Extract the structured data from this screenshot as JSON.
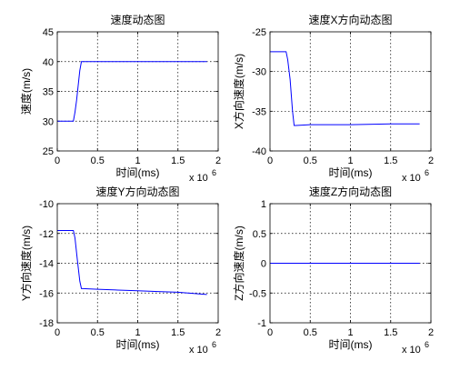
{
  "chart_data": [
    {
      "type": "line",
      "title": "速度动态图",
      "xlabel": "时间(ms)",
      "ylabel": "速度(m/s)",
      "x_multiplier": "x 10",
      "x_multiplier_exp": "6",
      "xlim": [
        0,
        2
      ],
      "ylim": [
        25,
        45
      ],
      "xticks": [
        0,
        0.5,
        1,
        1.5,
        2
      ],
      "yticks": [
        25,
        30,
        35,
        40,
        45
      ],
      "xtick_labels": [
        "0",
        "0.5",
        "1",
        "1.5",
        "2"
      ],
      "ytick_labels": [
        "25",
        "30",
        "35",
        "40",
        "45"
      ],
      "grid": true,
      "series": [
        {
          "color": "#0000ff",
          "x": [
            0.0,
            0.2,
            0.22,
            0.24,
            0.26,
            0.28,
            0.3,
            1.86
          ],
          "y": [
            30,
            30,
            31.5,
            33.5,
            36,
            38.5,
            40,
            40
          ]
        }
      ]
    },
    {
      "type": "line",
      "title": "速度X方向动态图",
      "xlabel": "时间(ms)",
      "ylabel": "X方向速度(m/s)",
      "x_multiplier": "x 10",
      "x_multiplier_exp": "6",
      "xlim": [
        0,
        2
      ],
      "ylim": [
        -40,
        -25
      ],
      "xticks": [
        0,
        0.5,
        1,
        1.5,
        2
      ],
      "yticks": [
        -40,
        -35,
        -30,
        -25
      ],
      "xtick_labels": [
        "0",
        "0.5",
        "1",
        "1.5",
        "2"
      ],
      "ytick_labels": [
        "-40",
        "-35",
        "-30",
        "-25"
      ],
      "grid": true,
      "series": [
        {
          "color": "#0000ff",
          "x": [
            0.0,
            0.2,
            0.22,
            0.25,
            0.28,
            0.3,
            0.32,
            0.5,
            1.0,
            1.5,
            1.86
          ],
          "y": [
            -27.5,
            -27.5,
            -28.5,
            -31,
            -35,
            -36.8,
            -36.8,
            -36.7,
            -36.7,
            -36.6,
            -36.6
          ]
        }
      ]
    },
    {
      "type": "line",
      "title": "速度Y方向动态图",
      "xlabel": "时间(ms)",
      "ylabel": "Y方向速度(m/s)",
      "x_multiplier": "x 10",
      "x_multiplier_exp": "6",
      "xlim": [
        0,
        2
      ],
      "ylim": [
        -18,
        -10
      ],
      "xticks": [
        0,
        0.5,
        1,
        1.5,
        2
      ],
      "yticks": [
        -18,
        -16,
        -14,
        -12,
        -10
      ],
      "xtick_labels": [
        "0",
        "0.5",
        "1",
        "1.5",
        "2"
      ],
      "ytick_labels": [
        "-18",
        "-16",
        "-14",
        "-12",
        "-10"
      ],
      "grid": true,
      "series": [
        {
          "color": "#0000ff",
          "x": [
            0.0,
            0.2,
            0.22,
            0.25,
            0.28,
            0.3,
            0.32,
            0.5,
            0.75,
            1.0,
            1.25,
            1.5,
            1.75,
            1.86
          ],
          "y": [
            -11.8,
            -11.8,
            -12.3,
            -13.8,
            -15.2,
            -15.7,
            -15.7,
            -15.75,
            -15.8,
            -15.85,
            -15.9,
            -15.95,
            -16.05,
            -16.1
          ]
        }
      ]
    },
    {
      "type": "line",
      "title": "速度Z方向动态图",
      "xlabel": "时间(ms)",
      "ylabel": "Z方向速度(m/s)",
      "x_multiplier": "x 10",
      "x_multiplier_exp": "6",
      "xlim": [
        0,
        2
      ],
      "ylim": [
        -1,
        1
      ],
      "xticks": [
        0,
        0.5,
        1,
        1.5,
        2
      ],
      "yticks": [
        -1,
        -0.5,
        0,
        0.5,
        1
      ],
      "xtick_labels": [
        "0",
        "0.5",
        "1",
        "1.5",
        "2"
      ],
      "ytick_labels": [
        "-1",
        "-0.5",
        "0",
        "0.5",
        "1"
      ],
      "grid": true,
      "series": [
        {
          "color": "#0000ff",
          "x": [
            0.0,
            1.86
          ],
          "y": [
            0,
            0
          ]
        }
      ]
    }
  ]
}
